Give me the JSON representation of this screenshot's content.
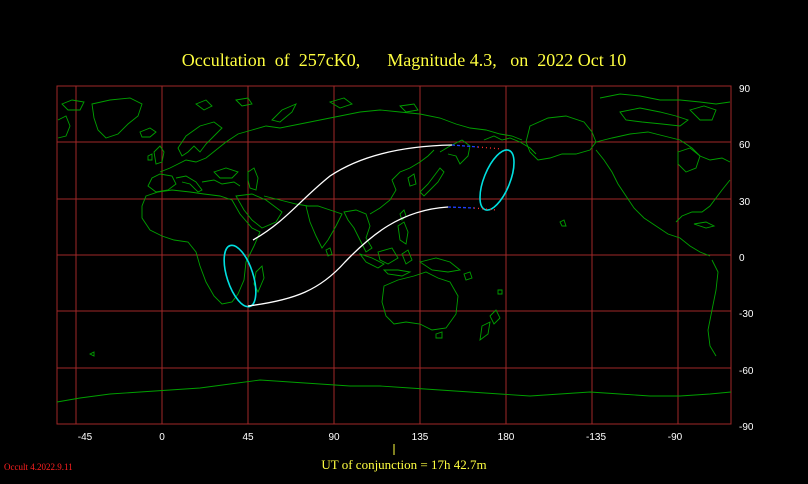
{
  "title": "Occultation  of  257cK0,      Magnitude 4.3,   on  2022 Oct 10",
  "footer": "UT of conjunction = 17h 42.7m",
  "version": "Occult 4.2022.9.11",
  "map": {
    "longitude_labels": [
      "-45",
      "0",
      "45",
      "90",
      "135",
      "180",
      "-135",
      "-90"
    ],
    "latitude_labels": [
      "90",
      "60",
      "30",
      "0",
      "-30",
      "-60",
      "-90"
    ],
    "colors": {
      "grid": "#a02828",
      "coast": "#00a000",
      "path": "#ffffff",
      "limit": "#00e0e0",
      "daylight_dash": "#2040ff",
      "twilight_dot": "#ff3030",
      "title": "#ffff40"
    }
  }
}
